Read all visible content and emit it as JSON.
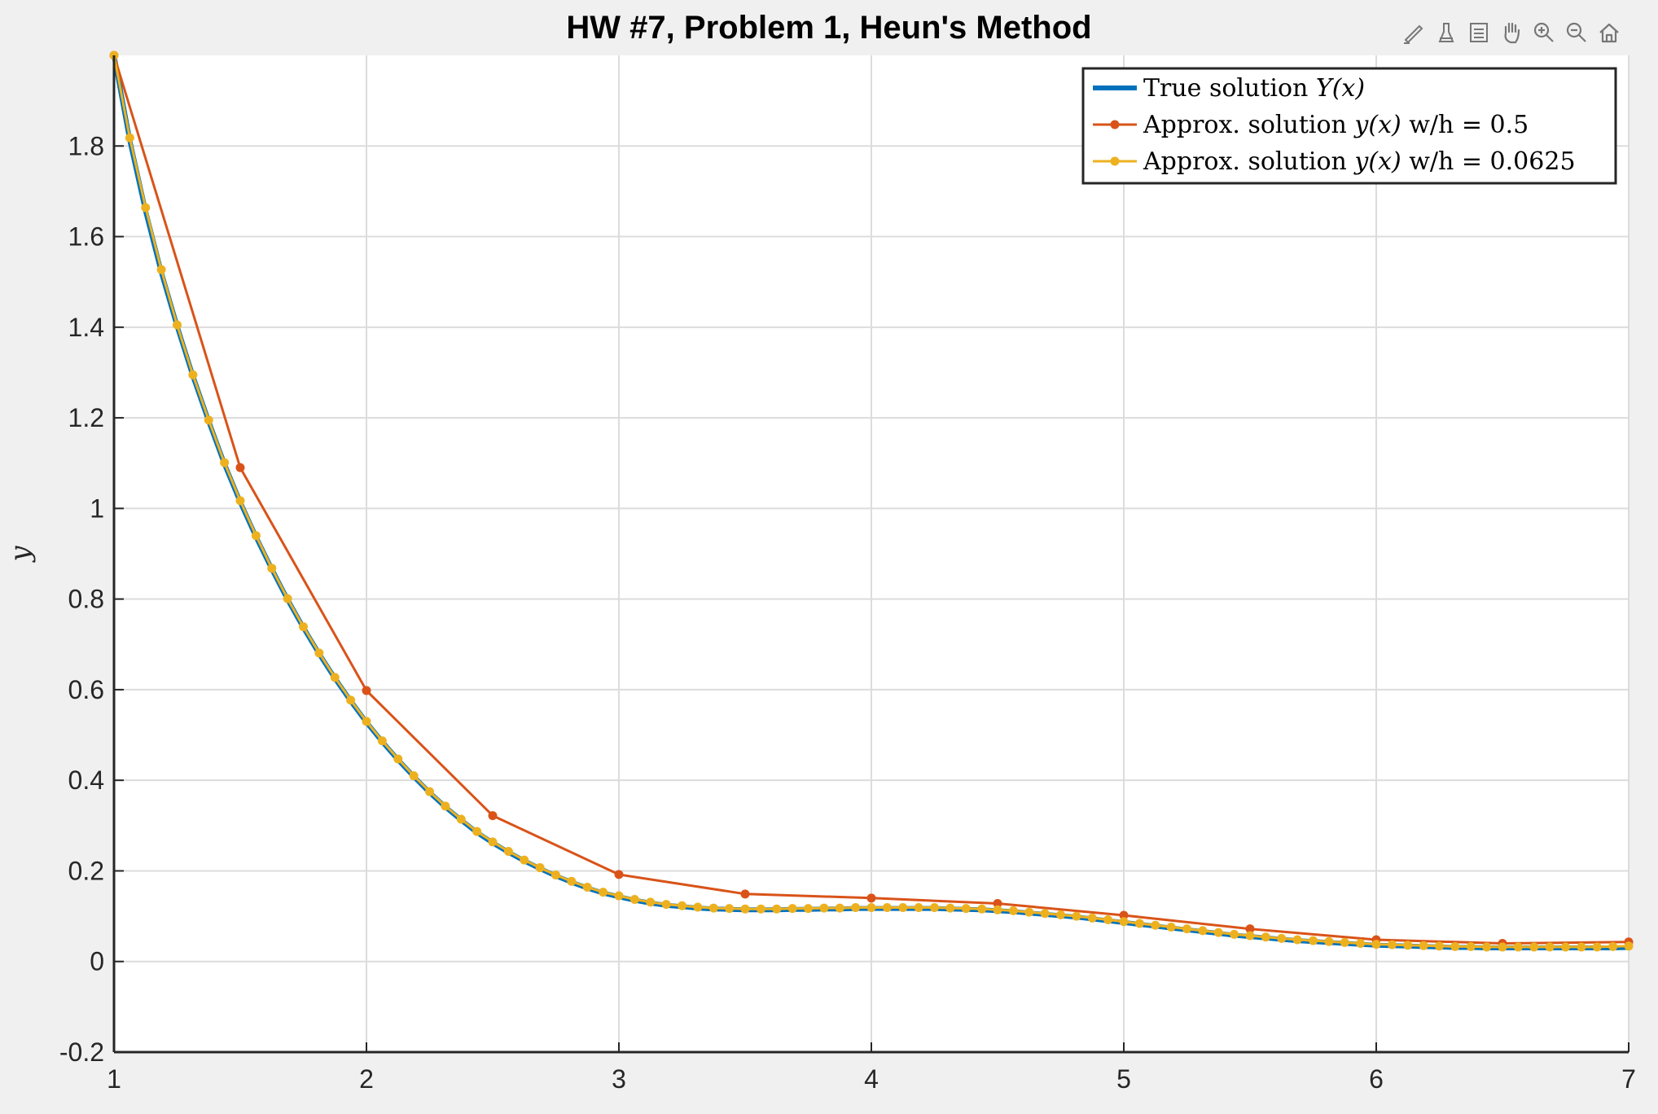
{
  "toolbar": {
    "icons": [
      "brush-edit-icon",
      "data-cursor-icon",
      "legend-edit-icon",
      "pan-hand-icon",
      "zoom-in-icon",
      "zoom-out-icon",
      "home-icon"
    ]
  },
  "colors": {
    "true_solution": "#0072BD",
    "approx_h05": "#D95319",
    "approx_h00625": "#EDB120"
  },
  "chart_data": {
    "type": "line",
    "title": "HW #7, Problem 1, Heun's Method",
    "xlabel": "",
    "ylabel": "y",
    "xlim": [
      1,
      7
    ],
    "ylim": [
      -0.2,
      2
    ],
    "xticks": [
      "1",
      "2",
      "3",
      "4",
      "5",
      "6",
      "7"
    ],
    "yticks": [
      "-0.2",
      "0",
      "0.2",
      "0.4",
      "0.6",
      "0.8",
      "1",
      "1.2",
      "1.4",
      "1.6",
      "1.8"
    ],
    "grid": true,
    "legend_position": "top-right",
    "series": [
      {
        "name": "True solution Y(x)",
        "marker": false,
        "x": [
          1.0,
          1.0625,
          1.125,
          1.1875,
          1.25,
          1.3125,
          1.375,
          1.4375,
          1.5,
          1.5625,
          1.625,
          1.6875,
          1.75,
          1.8125,
          1.875,
          1.9375,
          2.0,
          2.0625,
          2.125,
          2.1875,
          2.25,
          2.3125,
          2.375,
          2.4375,
          2.5,
          2.5625,
          2.625,
          2.6875,
          2.75,
          2.8125,
          2.875,
          2.9375,
          3.0,
          3.0625,
          3.125,
          3.1875,
          3.25,
          3.3125,
          3.375,
          3.4375,
          3.5,
          3.5625,
          3.625,
          3.6875,
          3.75,
          3.8125,
          3.875,
          3.9375,
          4.0,
          4.0625,
          4.125,
          4.1875,
          4.25,
          4.3125,
          4.375,
          4.4375,
          4.5,
          4.5625,
          4.625,
          4.6875,
          4.75,
          4.8125,
          4.875,
          4.9375,
          5.0,
          5.0625,
          5.125,
          5.1875,
          5.25,
          5.3125,
          5.375,
          5.4375,
          5.5,
          5.5625,
          5.625,
          5.6875,
          5.75,
          5.8125,
          5.875,
          5.9375,
          6.0,
          6.0625,
          6.125,
          6.1875,
          6.25,
          6.3125,
          6.375,
          6.4375,
          6.5,
          6.5625,
          6.625,
          6.6875,
          6.75,
          6.8125,
          6.875,
          6.9375,
          7.0
        ],
        "y": [
          2.0,
          1.812,
          1.656,
          1.521,
          1.402,
          1.292,
          1.192,
          1.098,
          1.014,
          0.937,
          0.866,
          0.799,
          0.737,
          0.679,
          0.625,
          0.575,
          0.528,
          0.485,
          0.445,
          0.408,
          0.373,
          0.341,
          0.312,
          0.285,
          0.262,
          0.241,
          0.222,
          0.205,
          0.189,
          0.175,
          0.162,
          0.151,
          0.143,
          0.135,
          0.129,
          0.124,
          0.121,
          0.118,
          0.116,
          0.115,
          0.114,
          0.114,
          0.114,
          0.115,
          0.115,
          0.116,
          0.116,
          0.117,
          0.117,
          0.117,
          0.117,
          0.117,
          0.117,
          0.116,
          0.115,
          0.114,
          0.112,
          0.11,
          0.107,
          0.104,
          0.101,
          0.098,
          0.094,
          0.09,
          0.086,
          0.082,
          0.078,
          0.074,
          0.07,
          0.066,
          0.062,
          0.058,
          0.055,
          0.052,
          0.049,
          0.046,
          0.044,
          0.042,
          0.04,
          0.038,
          0.036,
          0.035,
          0.034,
          0.033,
          0.032,
          0.031,
          0.031,
          0.03,
          0.03,
          0.03,
          0.03,
          0.03,
          0.03,
          0.03,
          0.03,
          0.03,
          0.031
        ]
      },
      {
        "name": "Approx. solution y(x) w/h = 0.5",
        "marker": true,
        "x": [
          1.0,
          1.5,
          2.0,
          2.5,
          3.0,
          3.5,
          4.0,
          4.5,
          5.0,
          5.5,
          6.0,
          6.5,
          7.0
        ],
        "y": [
          2.0,
          1.09,
          0.598,
          0.322,
          0.192,
          0.149,
          0.14,
          0.128,
          0.102,
          0.072,
          0.048,
          0.04,
          0.043
        ]
      },
      {
        "name": "Approx. solution y(x) w/h = 0.0625",
        "marker": true,
        "x": [
          1.0,
          1.0625,
          1.125,
          1.1875,
          1.25,
          1.3125,
          1.375,
          1.4375,
          1.5,
          1.5625,
          1.625,
          1.6875,
          1.75,
          1.8125,
          1.875,
          1.9375,
          2.0,
          2.0625,
          2.125,
          2.1875,
          2.25,
          2.3125,
          2.375,
          2.4375,
          2.5,
          2.5625,
          2.625,
          2.6875,
          2.75,
          2.8125,
          2.875,
          2.9375,
          3.0,
          3.0625,
          3.125,
          3.1875,
          3.25,
          3.3125,
          3.375,
          3.4375,
          3.5,
          3.5625,
          3.625,
          3.6875,
          3.75,
          3.8125,
          3.875,
          3.9375,
          4.0,
          4.0625,
          4.125,
          4.1875,
          4.25,
          4.3125,
          4.375,
          4.4375,
          4.5,
          4.5625,
          4.625,
          4.6875,
          4.75,
          4.8125,
          4.875,
          4.9375,
          5.0,
          5.0625,
          5.125,
          5.1875,
          5.25,
          5.3125,
          5.375,
          5.4375,
          5.5,
          5.5625,
          5.625,
          5.6875,
          5.75,
          5.8125,
          5.875,
          5.9375,
          6.0,
          6.0625,
          6.125,
          6.1875,
          6.25,
          6.3125,
          6.375,
          6.4375,
          6.5,
          6.5625,
          6.625,
          6.6875,
          6.75,
          6.8125,
          6.875,
          6.9375,
          7.0
        ],
        "y": [
          2.0,
          1.818,
          1.664,
          1.527,
          1.405,
          1.295,
          1.195,
          1.101,
          1.017,
          0.94,
          0.868,
          0.801,
          0.739,
          0.681,
          0.627,
          0.577,
          0.53,
          0.487,
          0.447,
          0.41,
          0.375,
          0.343,
          0.314,
          0.287,
          0.264,
          0.243,
          0.224,
          0.207,
          0.191,
          0.177,
          0.164,
          0.153,
          0.145,
          0.137,
          0.131,
          0.126,
          0.123,
          0.12,
          0.118,
          0.117,
          0.116,
          0.116,
          0.116,
          0.117,
          0.117,
          0.118,
          0.118,
          0.119,
          0.119,
          0.119,
          0.119,
          0.119,
          0.119,
          0.118,
          0.117,
          0.116,
          0.114,
          0.112,
          0.109,
          0.106,
          0.103,
          0.1,
          0.096,
          0.092,
          0.088,
          0.084,
          0.08,
          0.076,
          0.072,
          0.068,
          0.064,
          0.06,
          0.057,
          0.054,
          0.051,
          0.048,
          0.046,
          0.044,
          0.042,
          0.04,
          0.038,
          0.037,
          0.036,
          0.035,
          0.034,
          0.033,
          0.033,
          0.032,
          0.032,
          0.032,
          0.032,
          0.032,
          0.032,
          0.032,
          0.032,
          0.033,
          0.034
        ]
      }
    ],
    "legend": {
      "entries": [
        {
          "prefix": "True solution ",
          "math": "Y(x)",
          "suffix": ""
        },
        {
          "prefix": "Approx. solution ",
          "math": "y(x)",
          "suffix": " w/h = 0.5"
        },
        {
          "prefix": "Approx. solution ",
          "math": "y(x)",
          "suffix": " w/h = 0.0625"
        }
      ]
    }
  }
}
